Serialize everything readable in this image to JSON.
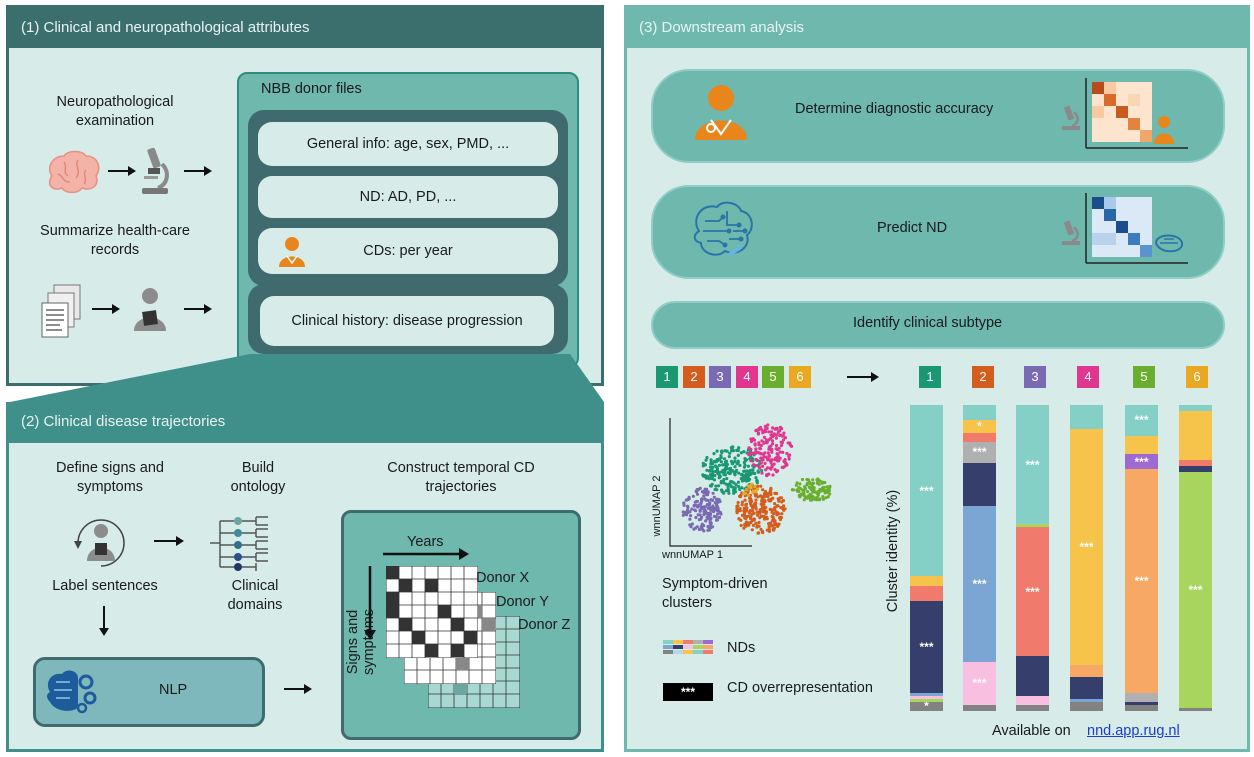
{
  "panel1": {
    "header": "(1)  Clinical and neuropathological attributes",
    "neuro_exam": "Neuropathological examination",
    "summarize": "Summarize health-care records",
    "donor_files": {
      "title": "NBB donor files",
      "general": "General info: age, sex, PMD, ...",
      "nd": "ND: AD, PD, ...",
      "cds": "CDs: per year",
      "clinical_history": "Clinical history: disease progression"
    }
  },
  "panel2": {
    "header": "(2)  Clinical disease trajectories",
    "define": "Define signs and symptoms",
    "build": "Build ontology",
    "construct": "Construct temporal CD trajectories",
    "label": "Label sentences",
    "domains": "Clinical domains",
    "nlp": "NLP",
    "years": "Years",
    "signs": "Signs and symptoms",
    "donor_x": "Donor X",
    "donor_y": "Donor Y",
    "donor_z": "Donor Z"
  },
  "panel3": {
    "header": "(3)  Downstream analysis",
    "diag": "Determine diagnostic accuracy",
    "predict": "Predict ND",
    "subtype": "Identify clinical subtype",
    "umap_y": "wnnUMAP 2",
    "umap_x": "wnnUMAP 1",
    "symptom_clusters": "Symptom-driven clusters",
    "nds_legend": "NDs",
    "cd_legend": "CD overrepresentation",
    "legend_stars": "***",
    "y_axis": "Cluster identity (%)",
    "available": "Available on",
    "link": "nnd.app.rug.nl"
  },
  "clusters": [
    {
      "label": "1",
      "color": "#1a9773"
    },
    {
      "label": "2",
      "color": "#d45d1e"
    },
    {
      "label": "3",
      "color": "#7a6ab3"
    },
    {
      "label": "4",
      "color": "#e0368f"
    },
    {
      "label": "5",
      "color": "#6aae2f"
    },
    {
      "label": "6",
      "color": "#e8a821"
    }
  ],
  "chart_data": {
    "type": "bar",
    "stacked": true,
    "categories": [
      "1",
      "2",
      "3",
      "4",
      "5",
      "6"
    ],
    "ylabel": "Cluster identity (%)",
    "ylim": [
      0,
      100
    ],
    "bars": [
      {
        "cluster": "1",
        "segments": [
          {
            "color": "#828282",
            "value": 3,
            "label": "*"
          },
          {
            "color": "#a7d55d",
            "value": 1
          },
          {
            "color": "#f8bfe0",
            "value": 1
          },
          {
            "color": "#7ba6d3",
            "value": 1
          },
          {
            "color": "#363f6b",
            "value": 30,
            "label": "***"
          },
          {
            "color": "#f07b6c",
            "value": 5
          },
          {
            "color": "#f6c44a",
            "value": 3
          },
          {
            "color": "#84d0c6",
            "value": 56,
            "label": "***"
          }
        ]
      },
      {
        "cluster": "2",
        "segments": [
          {
            "color": "#828282",
            "value": 2
          },
          {
            "color": "#f8bfe0",
            "value": 14,
            "label": "***"
          },
          {
            "color": "#7ba6d3",
            "value": 51,
            "label": "***"
          },
          {
            "color": "#363f6b",
            "value": 14
          },
          {
            "color": "#b0b0b0",
            "value": 7,
            "label": "***"
          },
          {
            "color": "#f07b6c",
            "value": 3
          },
          {
            "color": "#f6c44a",
            "value": 4,
            "label": "*"
          },
          {
            "color": "#84d0c6",
            "value": 5
          }
        ]
      },
      {
        "cluster": "3",
        "segments": [
          {
            "color": "#828282",
            "value": 2
          },
          {
            "color": "#f8bfe0",
            "value": 3
          },
          {
            "color": "#363f6b",
            "value": 13
          },
          {
            "color": "#f07b6c",
            "value": 42,
            "label": "***"
          },
          {
            "color": "#a7d55d",
            "value": 1
          },
          {
            "color": "#84d0c6",
            "value": 39,
            "label": "***"
          }
        ]
      },
      {
        "cluster": "4",
        "segments": [
          {
            "color": "#828282",
            "value": 3
          },
          {
            "color": "#7ba6d3",
            "value": 1
          },
          {
            "color": "#363f6b",
            "value": 7
          },
          {
            "color": "#f6a864",
            "value": 4
          },
          {
            "color": "#f6c44a",
            "value": 77,
            "label": "***"
          },
          {
            "color": "#84d0c6",
            "value": 8
          }
        ]
      },
      {
        "cluster": "5",
        "segments": [
          {
            "color": "#828282",
            "value": 2
          },
          {
            "color": "#363f6b",
            "value": 1
          },
          {
            "color": "#b0b0b0",
            "value": 3
          },
          {
            "color": "#f6a864",
            "value": 73,
            "label": "***"
          },
          {
            "color": "#9e6ad2",
            "value": 5,
            "label": "***"
          },
          {
            "color": "#f6c44a",
            "value": 6
          },
          {
            "color": "#84d0c6",
            "value": 10,
            "label": "***"
          }
        ]
      },
      {
        "cluster": "6",
        "segments": [
          {
            "color": "#828282",
            "value": 1
          },
          {
            "color": "#a7d55d",
            "value": 77,
            "label": "***"
          },
          {
            "color": "#363f6b",
            "value": 2
          },
          {
            "color": "#f07b6c",
            "value": 2
          },
          {
            "color": "#f6c44a",
            "value": 16
          },
          {
            "color": "#84d0c6",
            "value": 2
          }
        ]
      }
    ]
  }
}
